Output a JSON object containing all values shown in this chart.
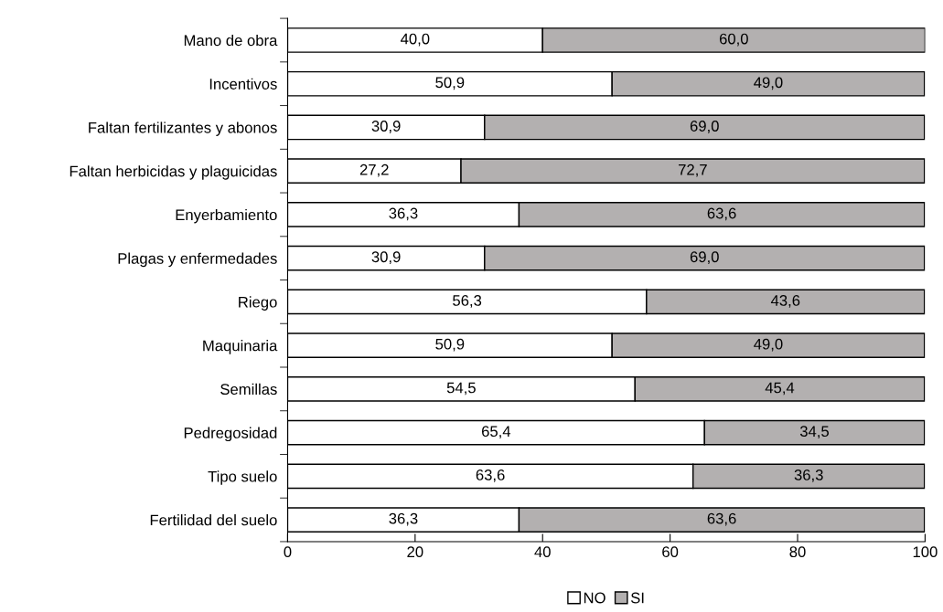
{
  "chart_data": {
    "type": "bar",
    "orientation": "horizontal",
    "stacked": true,
    "categories": [
      "Mano de obra",
      "Incentivos",
      "Faltan fertilizantes y abonos",
      "Faltan herbicidas y plaguicidas",
      "Enyerbamiento",
      "Plagas y enfermedades",
      "Riego",
      "Maquinaria",
      "Semillas",
      "Pedregosidad",
      "Tipo suelo",
      "Fertilidad del suelo"
    ],
    "series": [
      {
        "name": "NO",
        "color": "#ffffff",
        "values": [
          40.0,
          50.9,
          30.9,
          27.2,
          36.3,
          30.9,
          56.3,
          50.9,
          54.5,
          65.4,
          63.6,
          36.3
        ],
        "value_labels": [
          "40,0",
          "50,9",
          "30,9",
          "27,2",
          "36,3",
          "30,9",
          "56,3",
          "50,9",
          "54,5",
          "65,4",
          "63,6",
          "36,3"
        ]
      },
      {
        "name": "SI",
        "color": "#b3b0b0",
        "values": [
          60.0,
          49.0,
          69.0,
          72.7,
          63.6,
          69.0,
          43.6,
          49.0,
          45.4,
          34.5,
          36.3,
          63.6
        ],
        "value_labels": [
          "60,0",
          "49,0",
          "69,0",
          "72,7",
          "63,6",
          "69,0",
          "43,6",
          "49,0",
          "45,4",
          "34,5",
          "36,3",
          "63,6"
        ]
      }
    ],
    "xlim": [
      0,
      100
    ],
    "xticks": [
      0,
      20,
      40,
      60,
      80,
      100
    ],
    "grid": false,
    "legend": "bottom"
  }
}
